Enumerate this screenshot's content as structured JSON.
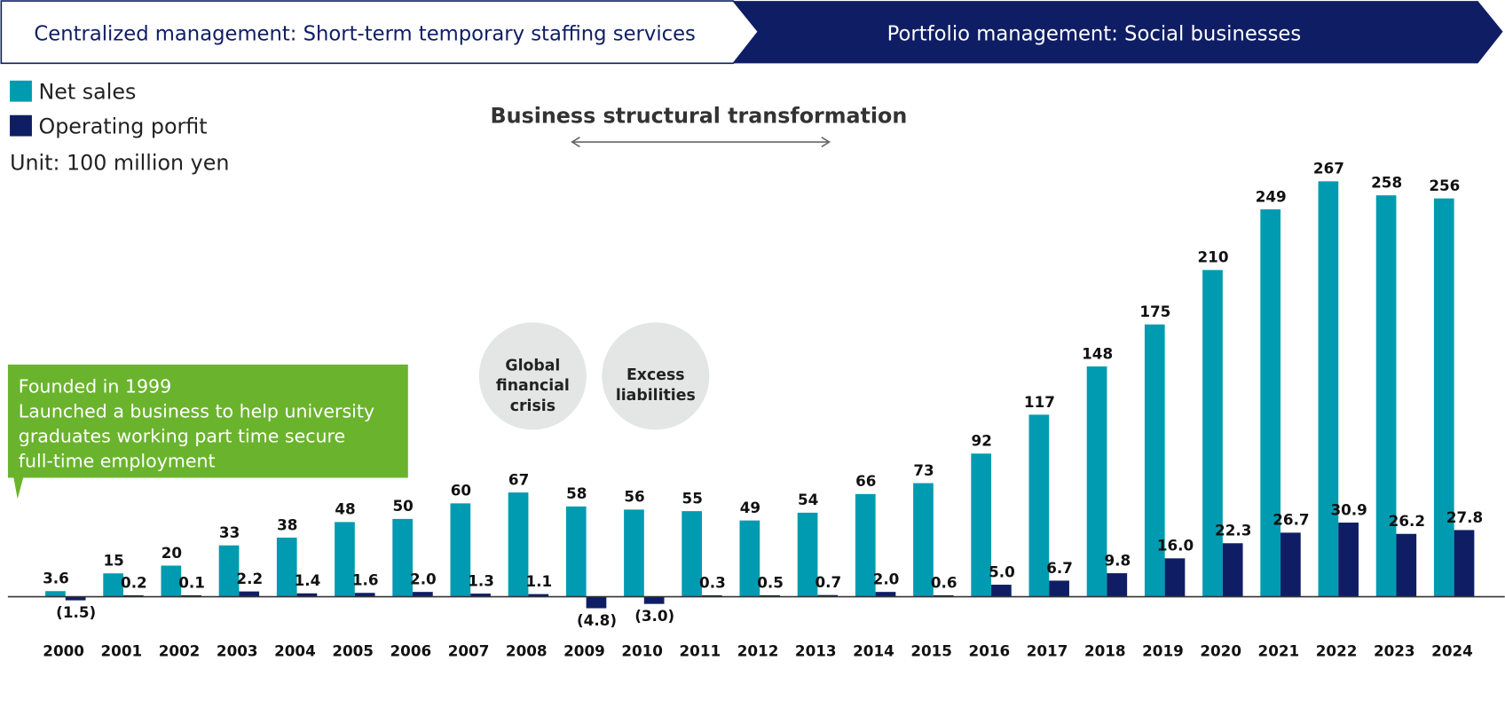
{
  "banner": {
    "left": "Centralized management: Short-term temporary staffing services",
    "right": "Portfolio management: Social businesses"
  },
  "colors": {
    "net_sales": "#009bb0",
    "operating_profit": "#0f1e64",
    "callout": "#6ab42d",
    "circle": "#e4e6e6",
    "banner": "#0f1e64"
  },
  "annotations": {
    "transformation": "Business structural transformation",
    "circle1": [
      "Global",
      "financial",
      "crisis"
    ],
    "circle2": [
      "Excess",
      "liabilities"
    ],
    "callout": [
      "Founded in 1999",
      "Launched a business to help university",
      "graduates working part time secure",
      "full-time employment"
    ]
  },
  "chart_data": {
    "type": "bar",
    "unit": "Unit: 100 million yen",
    "legend_position": "top-left",
    "grid": false,
    "categories": [
      "2000",
      "2001",
      "2002",
      "2003",
      "2004",
      "2005",
      "2006",
      "2007",
      "2008",
      "2009",
      "2010",
      "2011",
      "2012",
      "2013",
      "2014",
      "2015",
      "2016",
      "2017",
      "2018",
      "2019",
      "2020",
      "2021",
      "2022",
      "2023",
      "2024"
    ],
    "series": [
      {
        "name": "Net sales",
        "values": [
          3.6,
          15,
          20,
          33,
          38,
          48,
          50,
          60,
          67,
          58,
          56,
          55,
          49,
          54,
          66,
          73,
          92,
          117,
          148,
          175,
          210,
          249,
          267,
          258,
          256
        ],
        "labels": [
          "3.6",
          "15",
          "20",
          "33",
          "38",
          "48",
          "50",
          "60",
          "67",
          "58",
          "56",
          "55",
          "49",
          "54",
          "66",
          "73",
          "92",
          "117",
          "148",
          "175",
          "210",
          "249",
          "267",
          "258",
          "256"
        ]
      },
      {
        "name": "Operating porfit",
        "values": [
          -1.5,
          0.2,
          0.1,
          2.2,
          1.4,
          1.6,
          2.0,
          1.3,
          1.1,
          -4.8,
          -3.0,
          0.3,
          0.5,
          0.7,
          2.0,
          0.6,
          5.0,
          6.7,
          9.8,
          16.0,
          22.3,
          26.7,
          30.9,
          26.2,
          27.8
        ],
        "labels": [
          "(1.5)",
          "0.2",
          "0.1",
          "2.2",
          "1.4",
          "1.6",
          "2.0",
          "1.3",
          "1.1",
          "(4.8)",
          "(3.0)",
          "0.3",
          "0.5",
          "0.7",
          "2.0",
          "0.6",
          "5.0",
          "6.7",
          "9.8",
          "16.0",
          "22.3",
          "26.7",
          "30.9",
          "26.2",
          "27.8"
        ]
      }
    ]
  }
}
